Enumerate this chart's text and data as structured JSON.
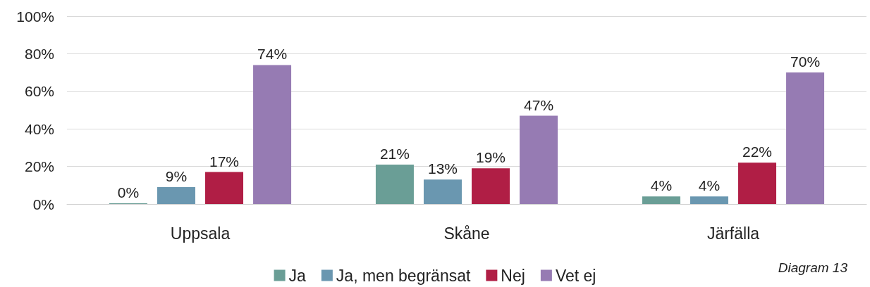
{
  "chart_data": {
    "type": "bar",
    "categories": [
      "Uppsala",
      "Skåne",
      "Järfälla"
    ],
    "series": [
      {
        "name": "Ja",
        "color": "#6a9e96",
        "values": [
          0,
          21,
          4
        ],
        "value_labels": [
          "0%",
          "21%",
          "4%"
        ]
      },
      {
        "name": "Ja, men begränsat",
        "color": "#6a97b0",
        "values": [
          9,
          13,
          4
        ],
        "value_labels": [
          "9%",
          "13%",
          "4%"
        ]
      },
      {
        "name": "Nej",
        "color": "#b01e45",
        "values": [
          17,
          19,
          22
        ],
        "value_labels": [
          "17%",
          "19%",
          "22%"
        ]
      },
      {
        "name": "Vet ej",
        "color": "#967bb3",
        "values": [
          74,
          47,
          70
        ],
        "value_labels": [
          "74%",
          "47%",
          "70%"
        ]
      }
    ],
    "ylim": [
      0,
      100
    ],
    "yticks": [
      {
        "value": 0,
        "label": "0%"
      },
      {
        "value": 20,
        "label": "20%"
      },
      {
        "value": 40,
        "label": "40%"
      },
      {
        "value": 60,
        "label": "60%"
      },
      {
        "value": 80,
        "label": "80%"
      },
      {
        "value": 100,
        "label": "100%"
      }
    ],
    "grid": "y",
    "legend": "bottom",
    "annotations": [
      "Diagram 13"
    ]
  }
}
